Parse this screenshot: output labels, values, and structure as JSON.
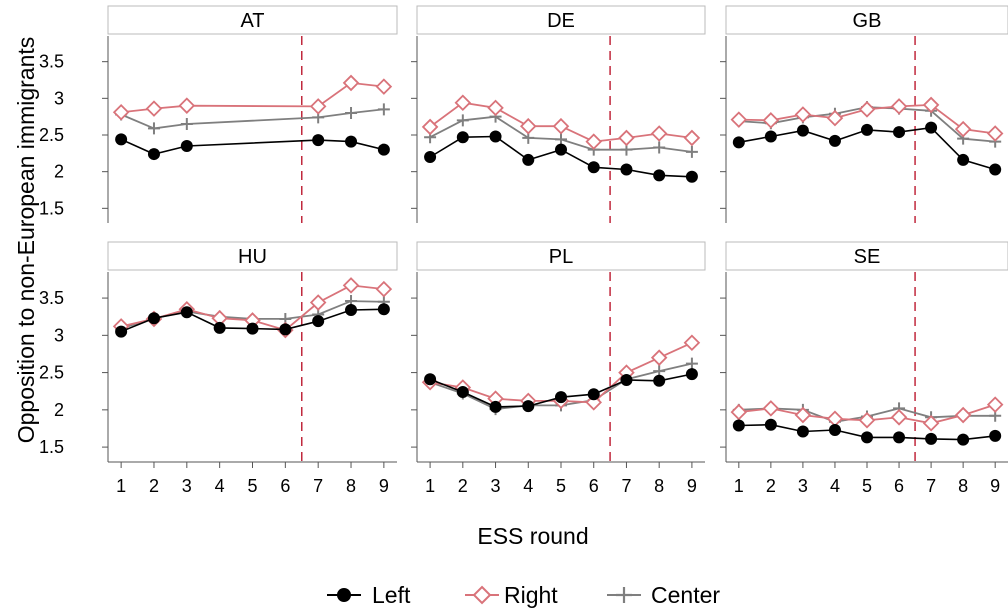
{
  "chart_data": {
    "type": "line",
    "ylabel": "Opposition to non-European immigrants",
    "xlabel": "ESS round",
    "x": [
      1,
      2,
      3,
      4,
      5,
      6,
      7,
      8,
      9
    ],
    "xticks": [
      1,
      2,
      3,
      4,
      5,
      6,
      7,
      8,
      9
    ],
    "yticks": [
      1.5,
      2,
      2.5,
      3,
      3.5
    ],
    "ytick_labels": [
      "1.5",
      "2",
      "2.5",
      "3",
      "3.5"
    ],
    "ylim": [
      1.3,
      3.85
    ],
    "xlim": [
      0.6,
      9.4
    ],
    "reference_line_x": 6.5,
    "grid": false,
    "legend_position": "bottom",
    "legend": [
      {
        "key": "left",
        "label": "Left"
      },
      {
        "key": "right",
        "label": "Right"
      },
      {
        "key": "center",
        "label": "Center"
      }
    ],
    "colors": {
      "left": "#000000",
      "right": "#d9737a",
      "center": "#7f7f7f",
      "reference_line": "#c0283c",
      "axis": "#555555",
      "strip_fill": "#ffffff",
      "strip_border": "#bbbbbb"
    },
    "panels": [
      {
        "title": "AT",
        "series": {
          "left": [
            [
              1,
              2.44
            ],
            [
              2,
              2.24
            ],
            [
              3,
              2.35
            ],
            [
              7,
              2.43
            ],
            [
              8,
              2.41
            ],
            [
              9,
              2.3
            ]
          ],
          "right": [
            [
              1,
              2.81
            ],
            [
              2,
              2.86
            ],
            [
              3,
              2.9
            ],
            [
              7,
              2.89
            ],
            [
              8,
              3.21
            ],
            [
              9,
              3.16
            ]
          ],
          "center": [
            [
              1,
              2.78
            ],
            [
              2,
              2.59
            ],
            [
              3,
              2.65
            ],
            [
              7,
              2.74
            ],
            [
              8,
              2.8
            ],
            [
              9,
              2.85
            ]
          ]
        }
      },
      {
        "title": "DE",
        "series": {
          "left": [
            [
              1,
              2.2
            ],
            [
              2,
              2.47
            ],
            [
              3,
              2.48
            ],
            [
              4,
              2.16
            ],
            [
              5,
              2.3
            ],
            [
              6,
              2.06
            ],
            [
              7,
              2.03
            ],
            [
              8,
              1.95
            ],
            [
              9,
              1.93
            ]
          ],
          "right": [
            [
              1,
              2.61
            ],
            [
              2,
              2.94
            ],
            [
              3,
              2.87
            ],
            [
              4,
              2.62
            ],
            [
              5,
              2.62
            ],
            [
              6,
              2.41
            ],
            [
              7,
              2.46
            ],
            [
              8,
              2.52
            ],
            [
              9,
              2.46
            ]
          ],
          "center": [
            [
              1,
              2.47
            ],
            [
              2,
              2.7
            ],
            [
              3,
              2.75
            ],
            [
              4,
              2.46
            ],
            [
              5,
              2.44
            ],
            [
              6,
              2.3
            ],
            [
              7,
              2.3
            ],
            [
              8,
              2.33
            ],
            [
              9,
              2.27
            ]
          ]
        }
      },
      {
        "title": "GB",
        "series": {
          "left": [
            [
              1,
              2.4
            ],
            [
              2,
              2.48
            ],
            [
              3,
              2.56
            ],
            [
              4,
              2.42
            ],
            [
              5,
              2.57
            ],
            [
              6,
              2.54
            ],
            [
              7,
              2.6
            ],
            [
              8,
              2.16
            ],
            [
              9,
              2.03
            ]
          ],
          "right": [
            [
              1,
              2.71
            ],
            [
              2,
              2.7
            ],
            [
              3,
              2.78
            ],
            [
              4,
              2.73
            ],
            [
              5,
              2.85
            ],
            [
              6,
              2.89
            ],
            [
              7,
              2.91
            ],
            [
              8,
              2.58
            ],
            [
              9,
              2.52
            ]
          ],
          "center": [
            [
              1,
              2.69
            ],
            [
              2,
              2.66
            ],
            [
              3,
              2.74
            ],
            [
              4,
              2.79
            ],
            [
              5,
              2.88
            ],
            [
              6,
              2.86
            ],
            [
              7,
              2.83
            ],
            [
              8,
              2.45
            ],
            [
              9,
              2.41
            ]
          ]
        }
      },
      {
        "title": "HU",
        "series": {
          "left": [
            [
              1,
              3.05
            ],
            [
              2,
              3.23
            ],
            [
              3,
              3.31
            ],
            [
              4,
              3.1
            ],
            [
              5,
              3.09
            ],
            [
              6,
              3.08
            ],
            [
              7,
              3.19
            ],
            [
              8,
              3.34
            ],
            [
              9,
              3.35
            ]
          ],
          "right": [
            [
              1,
              3.12
            ],
            [
              2,
              3.22
            ],
            [
              3,
              3.35
            ],
            [
              4,
              3.23
            ],
            [
              5,
              3.2
            ],
            [
              6,
              3.07
            ],
            [
              7,
              3.44
            ],
            [
              8,
              3.67
            ],
            [
              9,
              3.62
            ]
          ],
          "center": [
            [
              1,
              3.09
            ],
            [
              2,
              3.23
            ],
            [
              3,
              3.32
            ],
            [
              4,
              3.25
            ],
            [
              5,
              3.22
            ],
            [
              6,
              3.22
            ],
            [
              7,
              3.28
            ],
            [
              8,
              3.46
            ],
            [
              9,
              3.45
            ]
          ]
        }
      },
      {
        "title": "PL",
        "series": {
          "left": [
            [
              1,
              2.41
            ],
            [
              2,
              2.24
            ],
            [
              3,
              2.04
            ],
            [
              4,
              2.05
            ],
            [
              5,
              2.17
            ],
            [
              6,
              2.21
            ],
            [
              7,
              2.4
            ],
            [
              8,
              2.39
            ],
            [
              9,
              2.48
            ]
          ],
          "right": [
            [
              1,
              2.37
            ],
            [
              2,
              2.3
            ],
            [
              3,
              2.15
            ],
            [
              4,
              2.12
            ],
            [
              5,
              2.12
            ],
            [
              6,
              2.1
            ],
            [
              7,
              2.5
            ],
            [
              8,
              2.7
            ],
            [
              9,
              2.9
            ]
          ],
          "center": [
            [
              1,
              2.37
            ],
            [
              2,
              2.22
            ],
            [
              3,
              2.01
            ],
            [
              4,
              2.06
            ],
            [
              5,
              2.06
            ],
            [
              6,
              2.13
            ],
            [
              7,
              2.41
            ],
            [
              8,
              2.52
            ],
            [
              9,
              2.62
            ]
          ]
        }
      },
      {
        "title": "SE",
        "series": {
          "left": [
            [
              1,
              1.79
            ],
            [
              2,
              1.8
            ],
            [
              3,
              1.71
            ],
            [
              4,
              1.73
            ],
            [
              5,
              1.63
            ],
            [
              6,
              1.63
            ],
            [
              7,
              1.61
            ],
            [
              8,
              1.6
            ],
            [
              9,
              1.65
            ]
          ],
          "right": [
            [
              1,
              1.97
            ],
            [
              2,
              2.02
            ],
            [
              3,
              1.93
            ],
            [
              4,
              1.88
            ],
            [
              5,
              1.86
            ],
            [
              6,
              1.9
            ],
            [
              7,
              1.82
            ],
            [
              8,
              1.93
            ],
            [
              9,
              2.07
            ]
          ],
          "center": [
            [
              1,
              2.0
            ],
            [
              2,
              2.02
            ],
            [
              3,
              2.0
            ],
            [
              4,
              1.84
            ],
            [
              5,
              1.91
            ],
            [
              6,
              2.02
            ],
            [
              7,
              1.9
            ],
            [
              8,
              1.92
            ],
            [
              9,
              1.92
            ]
          ]
        }
      }
    ]
  }
}
